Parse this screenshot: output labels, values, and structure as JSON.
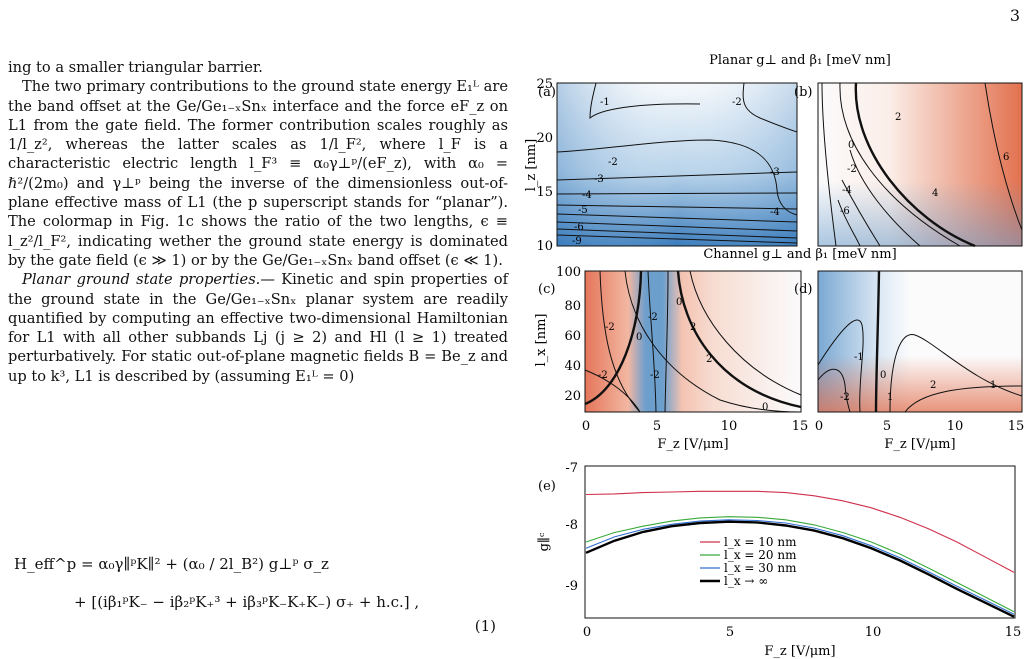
{
  "page_number": "3",
  "body": {
    "p1": "ing to a smaller triangular barrier.",
    "p2": "The two primary contributions to the ground state energy E₁ᴸ are the band offset at the Ge/Ge₁₋ₓSnₓ interface and the force eF_z on L1 from the gate field. The former contribution scales roughly as 1/l_z², whereas the latter scales as 1/l_F², where l_F is a characteristic electric length l_F³ ≡ α₀γ⊥ᵖ/(eF_z), with α₀ = ℏ²/(2m₀) and γ⊥ᵖ being the inverse of the dimensionless out-of-plane effective mass of L1 (the p superscript stands for “planar”). The colormap in Fig. 1c shows the ratio of the two lengths, ϵ ≡ l_z²/l_F², indicating wether the ground state energy is dominated by the gate field (ϵ ≫ 1) or by the Ge/Ge₁₋ₓSnₓ band offset (ϵ ≪ 1).",
    "p3_heading": "Planar ground state properties.—",
    "p3": "Kinetic and spin properties of the ground state in the Ge/Ge₁₋ₓSnₓ planar system are readily quantified by computing an effective two-dimensional Hamiltonian for L1 with all other subbands Lj (j ≥ 2) and Hl (l ≥ 1) treated perturbatively. For static out-of-plane magnetic fields B = Be_z and up to k³, L1 is described by (assuming E₁ᴸ = 0)"
  },
  "equation": {
    "line1": "H_eff^p = α₀γ∥ᵖK∥² + (α₀ / 2l_B²) g⊥ᵖ σ_z",
    "line2": "+ [(iβ₁ᵖK₋ − iβ₂ᵖK₊³ + iβ₃ᵖK₋K₊K₋) σ₊ + h.c.] ,",
    "number": "(1)"
  },
  "figure": {
    "planar_title": "Planar g⊥ and β₁ [meV nm]",
    "channel_title": "Channel g⊥ and β₁ [meV nm]",
    "labels": {
      "a": "(a)",
      "b": "(b)",
      "c": "(c)",
      "d": "(d)",
      "e": "(e)"
    },
    "ylabel_lz": "l_z [nm]",
    "ylabel_lx": "l_x [nm]",
    "xlabel_Fz": "F_z [V/μm]",
    "ylabel_g": "g∥ᶜ",
    "lz_ticks": [
      "10",
      "15",
      "20",
      "25"
    ],
    "lx_ticks": [
      "20",
      "40",
      "60",
      "80",
      "100"
    ],
    "fz_ticks": [
      "0",
      "5",
      "10",
      "15"
    ],
    "g_ticks": [
      "-7",
      "-8",
      "-9"
    ],
    "contour_labels_a": [
      "-1",
      "-2",
      "-2",
      "-3",
      "-3",
      "-4",
      "-4",
      "-5",
      "-6",
      "-9"
    ],
    "contour_labels_b": [
      "0",
      "2",
      "4",
      "6",
      "-2",
      "-4",
      "-6"
    ],
    "contour_labels_c": [
      "-2",
      "-2",
      "-2",
      "-2",
      "0",
      "0",
      "2",
      "2",
      "0"
    ],
    "contour_labels_d": [
      "-1",
      "-2",
      "0",
      "1",
      "1",
      "2"
    ],
    "colors": {
      "blue": "#3f7fbd",
      "red": "#e06a4c",
      "line10": "#d0304a",
      "line20": "#3aaa3a",
      "line30": "#2f6fd0",
      "lineinf": "#000000"
    }
  },
  "chart_data": {
    "type": "line",
    "xlabel": "F_z [V/μm]",
    "ylabel": "g∥ᶜ",
    "xlim": [
      0,
      15
    ],
    "ylim": [
      -9.4,
      -7
    ],
    "x": [
      0,
      1,
      2,
      3,
      4,
      5,
      6,
      7,
      8,
      9,
      10,
      11,
      12,
      13,
      14,
      15
    ],
    "series": [
      {
        "name": "l_x = 10 nm",
        "color": "#d0304a",
        "values": [
          -7.45,
          -7.44,
          -7.42,
          -7.41,
          -7.4,
          -7.4,
          -7.4,
          -7.42,
          -7.47,
          -7.55,
          -7.66,
          -7.81,
          -7.99,
          -8.2,
          -8.44,
          -8.68
        ]
      },
      {
        "name": "l_x = 20 nm",
        "color": "#3aaa3a",
        "values": [
          -8.2,
          -8.05,
          -7.95,
          -7.87,
          -7.82,
          -7.8,
          -7.81,
          -7.85,
          -7.93,
          -8.05,
          -8.2,
          -8.39,
          -8.61,
          -8.84,
          -9.07,
          -9.3
        ]
      },
      {
        "name": "l_x = 30 nm",
        "color": "#2f6fd0",
        "values": [
          -8.3,
          -8.12,
          -8.0,
          -7.92,
          -7.87,
          -7.85,
          -7.86,
          -7.9,
          -7.98,
          -8.1,
          -8.26,
          -8.45,
          -8.67,
          -8.9,
          -9.12,
          -9.34
        ]
      },
      {
        "name": "l_x → ∞",
        "color": "#000000",
        "values": [
          -8.37,
          -8.18,
          -8.04,
          -7.95,
          -7.9,
          -7.88,
          -7.89,
          -7.94,
          -8.02,
          -8.14,
          -8.3,
          -8.49,
          -8.71,
          -8.94,
          -9.16,
          -9.38
        ]
      }
    ]
  }
}
